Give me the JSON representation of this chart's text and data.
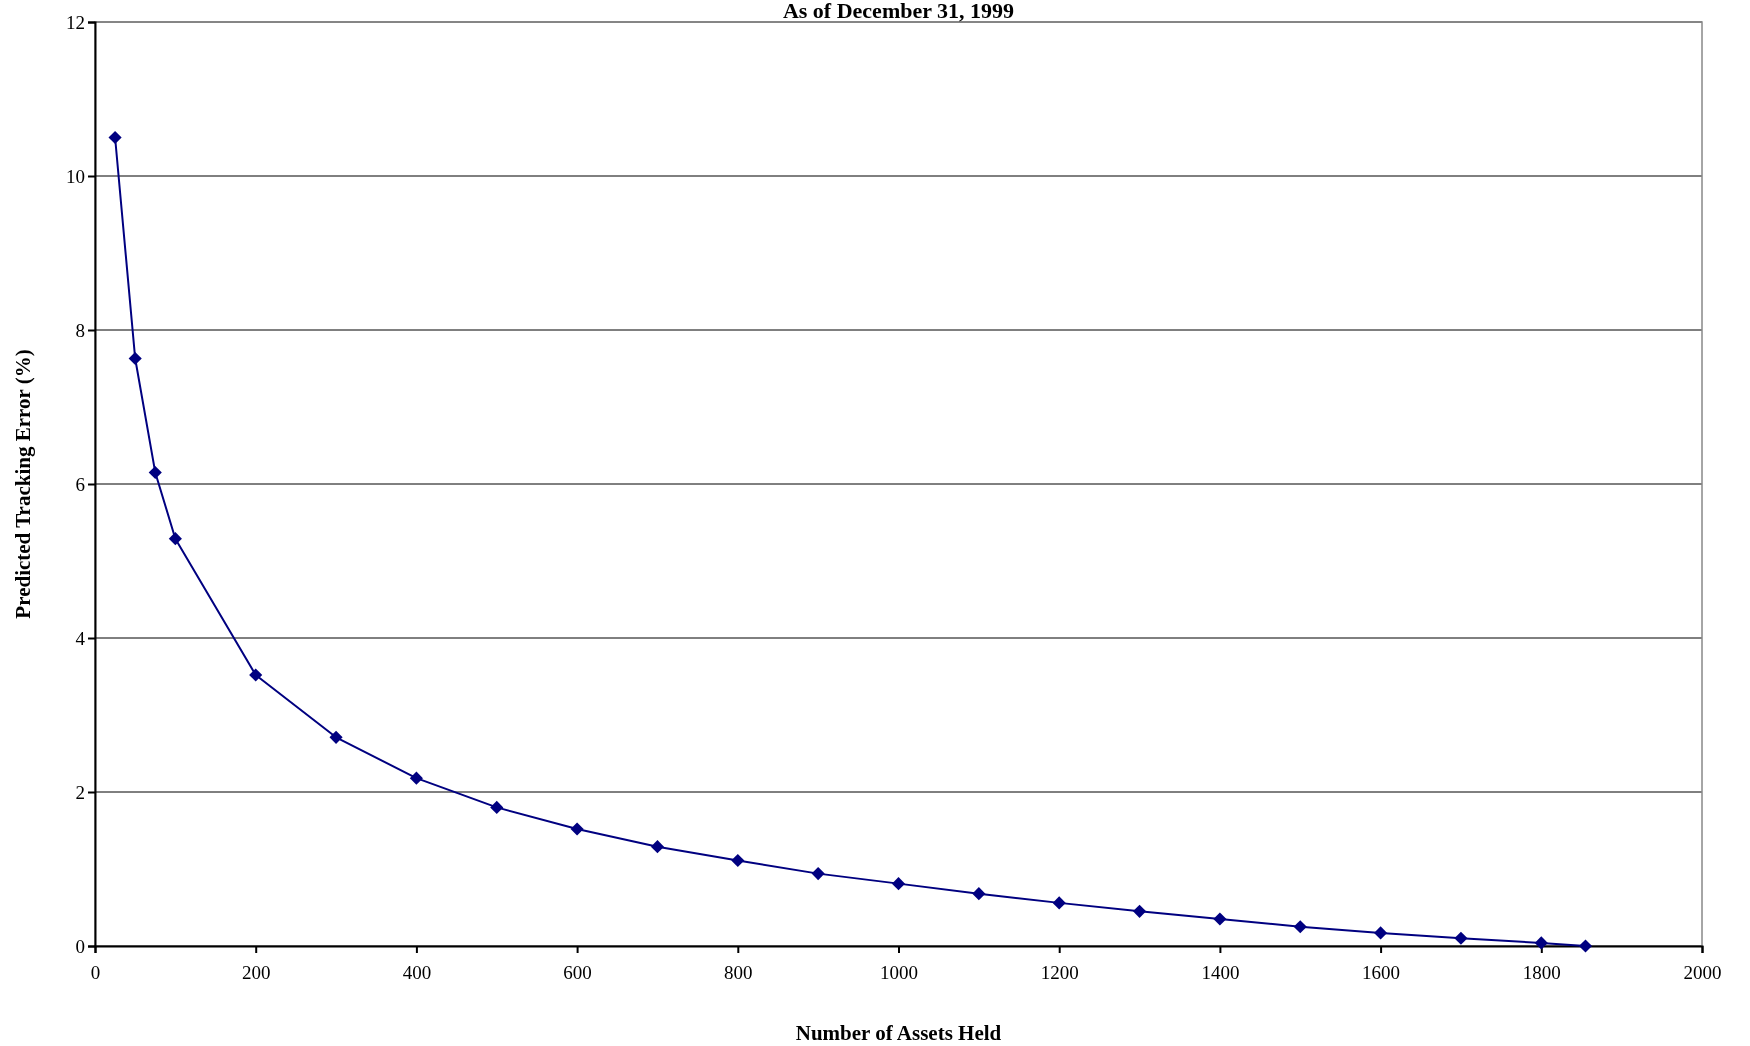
{
  "chart_data": {
    "type": "line",
    "subtitle": "As of December 31, 1999",
    "xlabel": "Number of Assets Held",
    "ylabel": "Predicted Tracking Error (%)",
    "x": [
      25,
      50,
      75,
      100,
      200,
      300,
      400,
      500,
      600,
      700,
      800,
      900,
      1000,
      1100,
      1200,
      1300,
      1400,
      1500,
      1600,
      1700,
      1800,
      1855
    ],
    "series": [
      {
        "color": "#000080",
        "values": [
          10.5,
          7.63,
          6.15,
          5.29,
          3.52,
          2.71,
          2.18,
          1.8,
          1.52,
          1.29,
          1.11,
          0.94,
          0.81,
          0.68,
          0.56,
          0.45,
          0.35,
          0.25,
          0.17,
          0.1,
          0.04,
          0
        ]
      }
    ],
    "xlim": [
      0,
      2000
    ],
    "xticks": [
      0,
      200,
      400,
      600,
      800,
      1000,
      1200,
      1400,
      1600,
      1800,
      2000
    ],
    "ylim": [
      0,
      12
    ],
    "yticks": [
      0,
      2,
      4,
      6,
      8,
      10,
      12
    ],
    "grid": "y",
    "marker": "diamond",
    "line_style": "solid"
  }
}
